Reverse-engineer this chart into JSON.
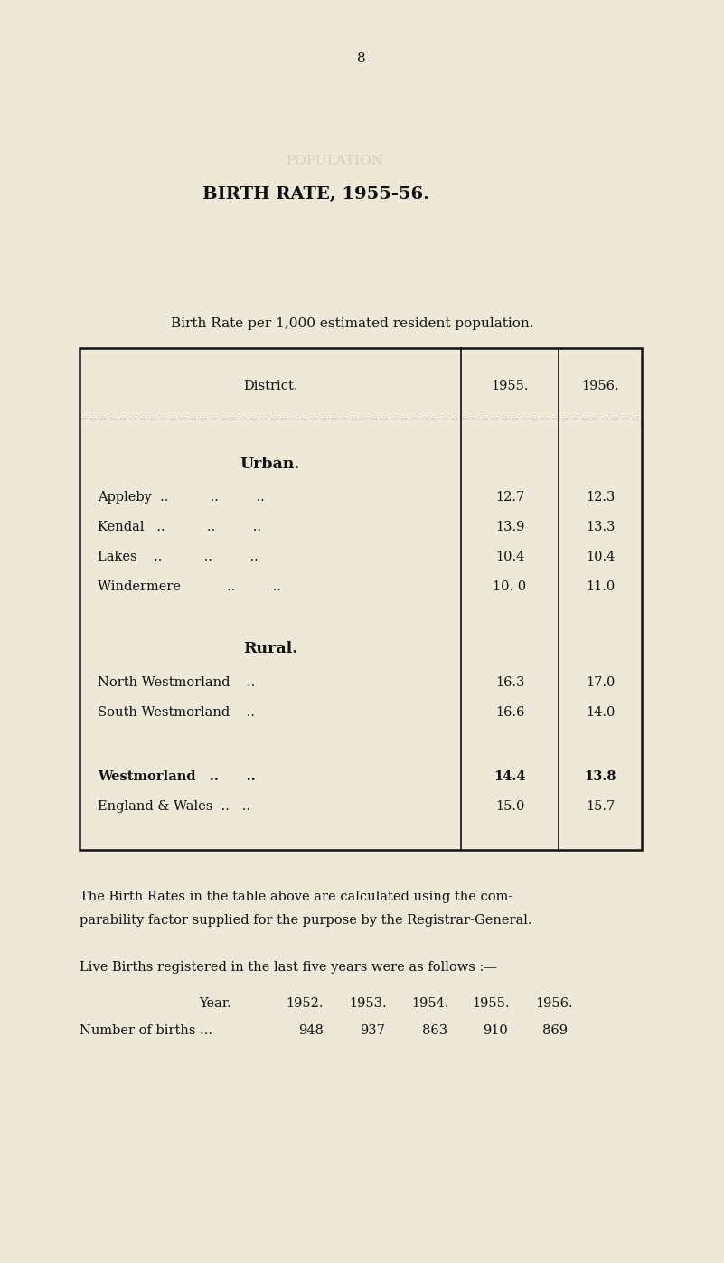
{
  "bg_color": "#ede8d8",
  "page_number": "8",
  "title": "BIRTH RATE, 1955-56.",
  "subtitle": "Birth Rate per 1,000 estimated resident population.",
  "col_header_district": "District.",
  "col_header_1955": "1955.",
  "col_header_1956": "1956.",
  "urban_header": "Urban.",
  "rural_header": "Rural.",
  "urban_rows": [
    {
      "district": "Appleby  ..          ..         ..",
      "val1955": "12.7",
      "val1956": "12.3"
    },
    {
      "district": "Kendal   ..          ..         ..",
      "val1955": "13.9",
      "val1956": "13.3"
    },
    {
      "district": "Lakes    ..          ..         ..",
      "val1955": "10.4",
      "val1956": "10.4"
    },
    {
      "district": "Windermere           ..         ..",
      "val1955": "10. 0",
      "val1956": "11.0"
    }
  ],
  "rural_rows": [
    {
      "district": "North Westmorland    ..",
      "val1955": "16.3",
      "val1956": "17.0"
    },
    {
      "district": "South Westmorland    ..",
      "val1955": "16.6",
      "val1956": "14.0"
    }
  ],
  "summary_rows": [
    {
      "district": "Westmorland   ..      ..",
      "val1955": "14.4",
      "val1956": "13.8",
      "bold": true
    },
    {
      "district": "England & Wales  ..   ..",
      "val1955": "15.0",
      "val1956": "15.7",
      "bold": false
    }
  ],
  "footnote1": "The Birth Rates in the table above are calculated using the com-",
  "footnote2": "parability factor supplied for the purpose by the Registrar-General.",
  "live_births_intro": "Live Births registered in the last five years were as follows :—",
  "years_label": "Year.",
  "births_label": "Number of births ...",
  "years": [
    "1952.",
    "1953.",
    "1954.",
    "1955.",
    "1956."
  ],
  "births": [
    "948",
    "937",
    "863",
    "910",
    "869"
  ]
}
